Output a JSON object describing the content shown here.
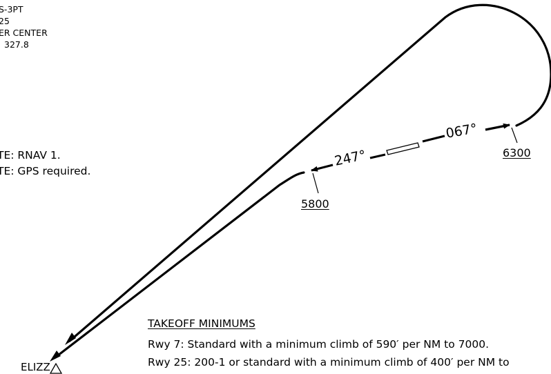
{
  "header": {
    "line1": "S-3PT",
    "line2": "25",
    "line3": "ER CENTER",
    "line4": "327.8"
  },
  "notes": {
    "note1": "TE:  RNAV 1.",
    "note2": "TE:  GPS required."
  },
  "procedure": {
    "course_outbound": "067°",
    "course_inbound": "247°",
    "altitude_east": "6300",
    "altitude_west": "5800",
    "fix_name": "ELIZZ"
  },
  "takeoff": {
    "heading": "TAKEOFF MINIMUMS",
    "rwy7": "Rwy 7:  Standard with a minimum climb of 590′ per NM to 7000.",
    "rwy25": "Rwy 25:  200-1 or standard with a minimum climb of 400′ per NM to"
  }
}
